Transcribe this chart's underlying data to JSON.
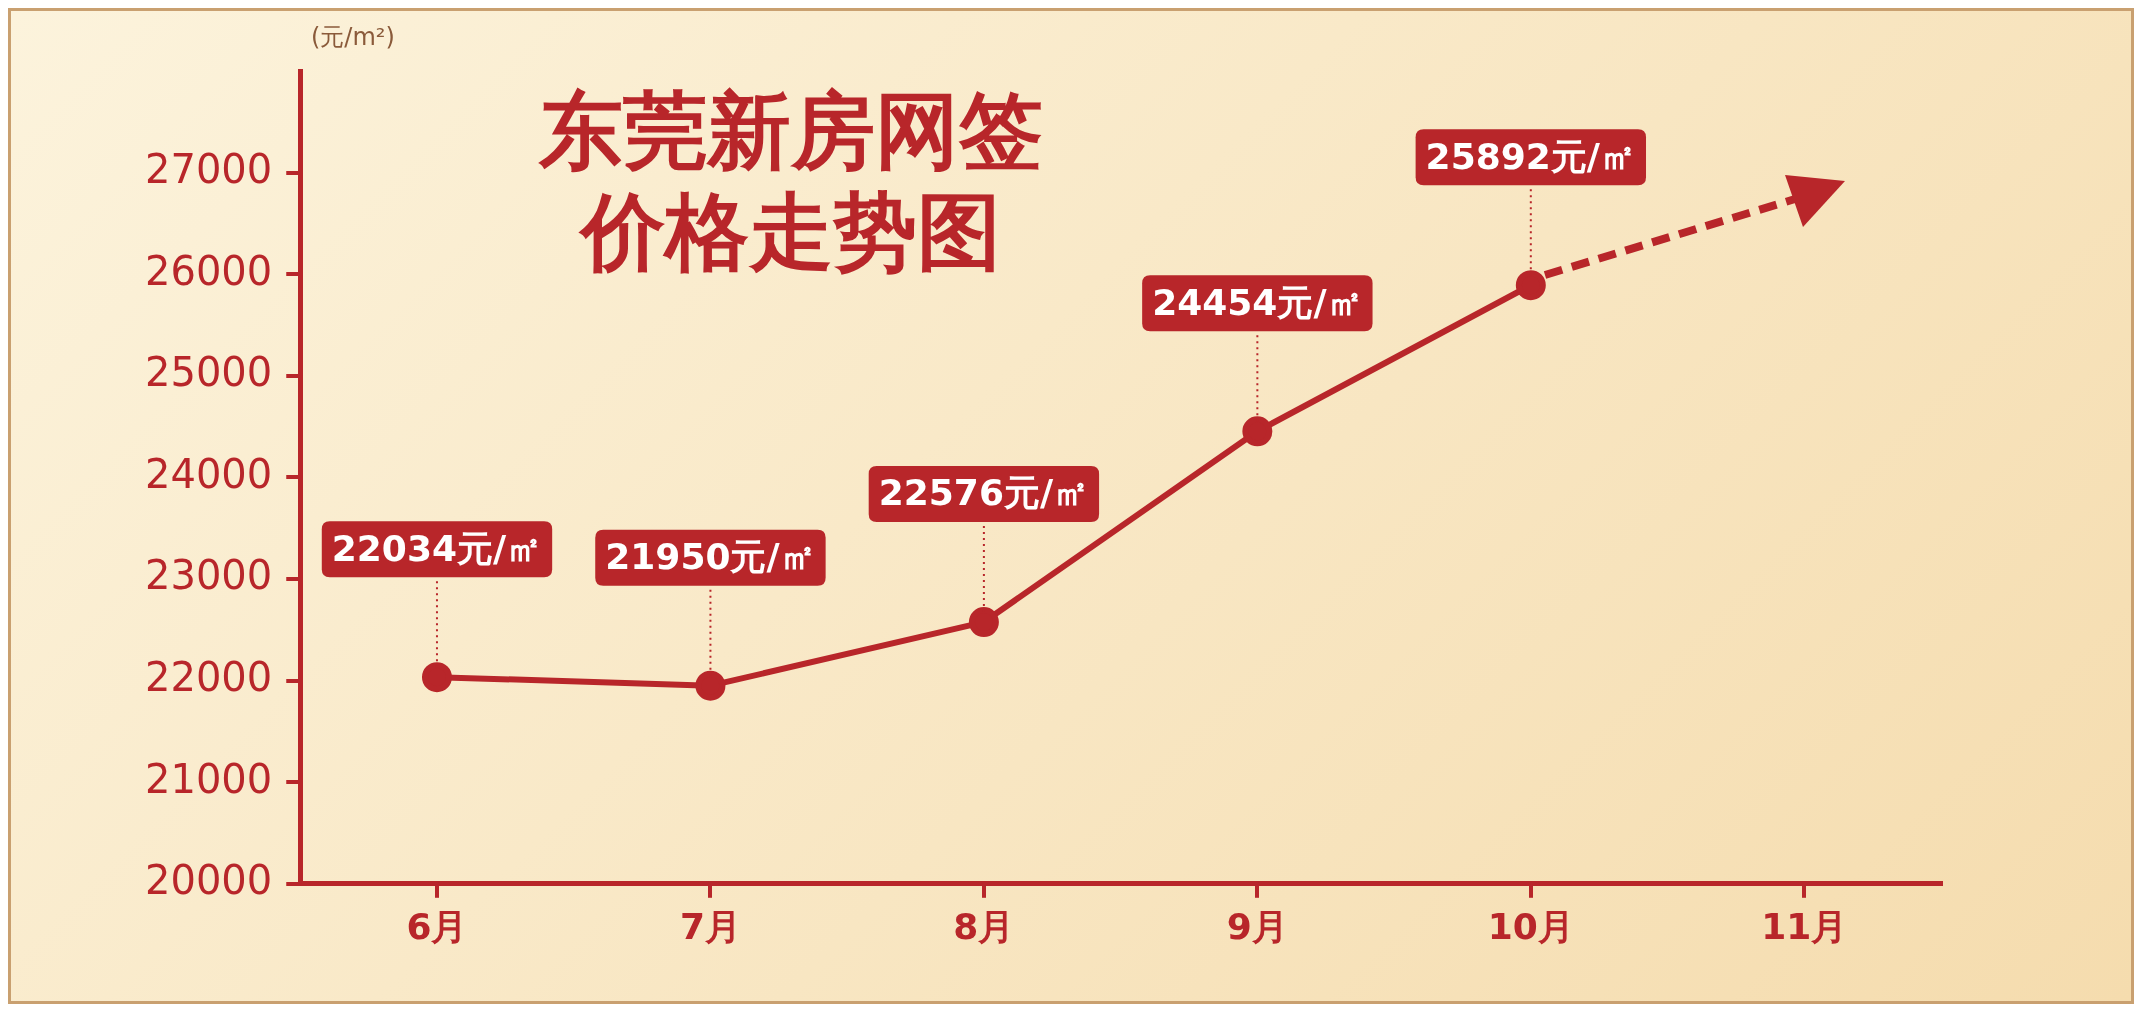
{
  "chart_data": {
    "type": "line",
    "title": "东莞新房网签价格走势图",
    "ylabel": "(元/m²)",
    "categories": [
      "6月",
      "7月",
      "8月",
      "9月",
      "10月",
      "11月"
    ],
    "series": [
      {
        "color": "#b8262a",
        "values": [
          22034,
          21950,
          22576,
          24454,
          25892,
          null
        ]
      }
    ],
    "value_labels": [
      "22034元/㎡",
      "21950元/㎡",
      "22576元/㎡",
      "24454元/㎡",
      "25892元/㎡",
      null
    ],
    "ylim": [
      20000,
      28000
    ],
    "yticks": [
      20000,
      21000,
      22000,
      23000,
      24000,
      25000,
      26000,
      27000
    ],
    "grid": false,
    "legend": false,
    "marker": "circle",
    "line_style": "solid"
  }
}
